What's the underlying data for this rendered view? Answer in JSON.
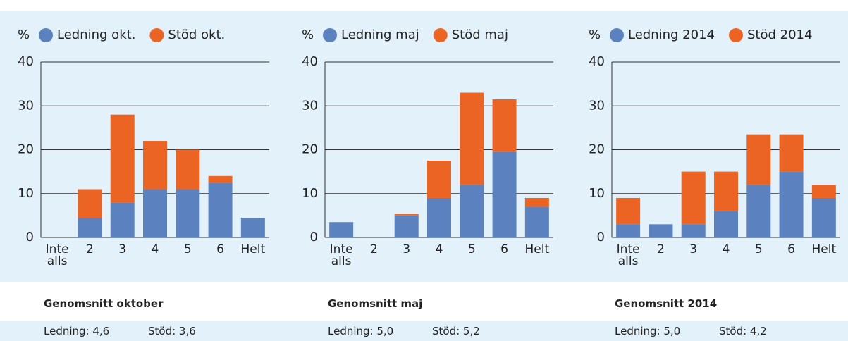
{
  "chart_data": [
    {
      "type": "bar",
      "stacked": true,
      "unit_label": "%",
      "categories": [
        "Inte alls",
        "2",
        "3",
        "4",
        "5",
        "6",
        "Helt"
      ],
      "series": [
        {
          "name": "Ledning okt.",
          "color": "#5b82be",
          "values": [
            0,
            4.5,
            8,
            11,
            11,
            12.5,
            4.5
          ]
        },
        {
          "name": "Stöd okt.",
          "color": "#eb6424",
          "values": [
            0,
            6.5,
            20,
            11,
            9,
            1.5,
            0
          ]
        }
      ],
      "ylim": [
        0,
        40
      ],
      "yticks": [
        0,
        10,
        20,
        30,
        40
      ],
      "grid": true
    },
    {
      "type": "bar",
      "stacked": true,
      "unit_label": "%",
      "categories": [
        "Inte alls",
        "2",
        "3",
        "4",
        "5",
        "6",
        "Helt"
      ],
      "series": [
        {
          "name": "Ledning maj",
          "color": "#5b82be",
          "values": [
            3.5,
            0,
            5,
            9,
            12,
            19.5,
            7
          ]
        },
        {
          "name": "Stöd maj",
          "color": "#eb6424",
          "values": [
            0,
            0,
            0.3,
            8.5,
            21,
            12,
            2
          ]
        }
      ],
      "ylim": [
        0,
        40
      ],
      "yticks": [
        0,
        10,
        20,
        30,
        40
      ],
      "grid": true
    },
    {
      "type": "bar",
      "stacked": true,
      "unit_label": "%",
      "categories": [
        "Inte alls",
        "2",
        "3",
        "4",
        "5",
        "6",
        "Helt"
      ],
      "series": [
        {
          "name": "Ledning 2014",
          "color": "#5b82be",
          "values": [
            3,
            3,
            3,
            6,
            12,
            15,
            9
          ]
        },
        {
          "name": "Stöd 2014",
          "color": "#eb6424",
          "values": [
            6,
            0,
            12,
            9,
            11.5,
            8.5,
            3
          ]
        }
      ],
      "ylim": [
        0,
        40
      ],
      "yticks": [
        0,
        10,
        20,
        30,
        40
      ],
      "grid": true
    }
  ],
  "summaries": [
    {
      "title": "Genomsnitt oktober",
      "items": [
        "Ledning: 4,6",
        "Stöd: 3,6"
      ]
    },
    {
      "title": "Genomsnitt maj",
      "items": [
        "Ledning: 5,0",
        "Stöd: 5,2"
      ]
    },
    {
      "title": "Genomsnitt 2014",
      "items": [
        "Ledning: 5,0",
        "Stöd: 4,2"
      ]
    }
  ]
}
